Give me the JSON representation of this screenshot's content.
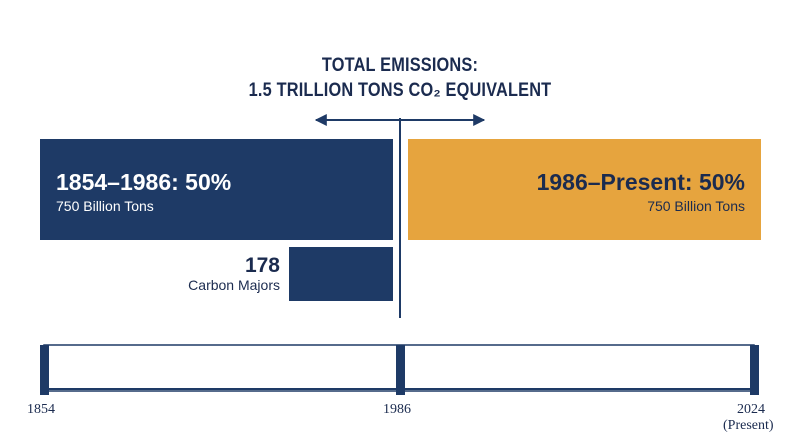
{
  "title": {
    "line1": "TOTAL EMISSIONS:",
    "line2": "1.5 TRILLION TONS CO₂ EQUIVALENT"
  },
  "blocks": {
    "left": {
      "period_pct": "1854–1986: 50%",
      "amount": "750 Billion Tons",
      "color": "#1e3a66"
    },
    "right": {
      "period_pct": "1986–Present: 50%",
      "amount": "750 Billion Tons",
      "color": "#e6a43e"
    },
    "carbon_majors": {
      "count": "178",
      "label": "Carbon Majors",
      "color": "#1e3a66"
    }
  },
  "timeline": {
    "ticks": [
      {
        "label": "1854"
      },
      {
        "label": "1986"
      },
      {
        "label": "2024",
        "sublabel": "(Present)"
      }
    ],
    "color": "#1e3a66"
  }
}
